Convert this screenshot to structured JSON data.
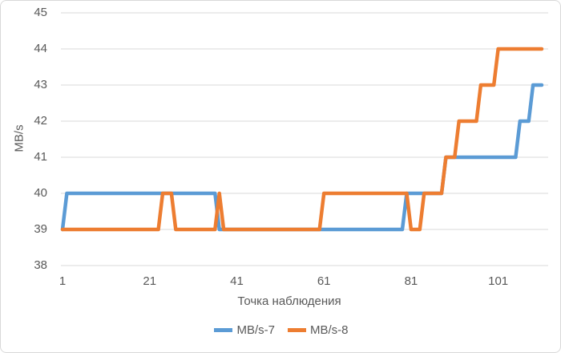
{
  "chart_data": {
    "type": "line",
    "title": "",
    "xlabel": "Точка наблюдения",
    "ylabel": "MB/s",
    "ylim": [
      38,
      45
    ],
    "yticks": [
      38,
      39,
      40,
      41,
      42,
      43,
      44,
      45
    ],
    "xticks": [
      1,
      21,
      41,
      61,
      81,
      101
    ],
    "x_start": 1,
    "n_points": 111,
    "grid": "horizontal",
    "legend_position": "bottom",
    "colors": {
      "grid": "#d9d9d9",
      "border": "#d9d9d9",
      "text": "#595959",
      "background": "#ffffff"
    },
    "series": [
      {
        "name": "MB/s-7",
        "color": "#5B9BD5",
        "values": [
          39,
          40,
          40,
          40,
          40,
          40,
          40,
          40,
          40,
          40,
          40,
          40,
          40,
          40,
          40,
          40,
          40,
          40,
          40,
          40,
          40,
          40,
          40,
          40,
          40,
          40,
          40,
          40,
          40,
          40,
          40,
          40,
          40,
          40,
          40,
          40,
          39,
          39,
          39,
          39,
          39,
          39,
          39,
          39,
          39,
          39,
          39,
          39,
          39,
          39,
          39,
          39,
          39,
          39,
          39,
          39,
          39,
          39,
          39,
          39,
          39,
          39,
          39,
          39,
          39,
          39,
          39,
          39,
          39,
          39,
          39,
          39,
          39,
          39,
          39,
          39,
          39,
          39,
          39,
          40,
          40,
          40,
          40,
          40,
          40,
          40,
          40,
          40,
          41,
          41,
          41,
          41,
          41,
          41,
          41,
          41,
          41,
          41,
          41,
          41,
          41,
          41,
          41,
          41,
          41,
          42,
          42,
          42,
          43,
          43,
          43
        ]
      },
      {
        "name": "MB/s-8",
        "color": "#ED7D31",
        "values": [
          39,
          39,
          39,
          39,
          39,
          39,
          39,
          39,
          39,
          39,
          39,
          39,
          39,
          39,
          39,
          39,
          39,
          39,
          39,
          39,
          39,
          39,
          39,
          40,
          40,
          40,
          39,
          39,
          39,
          39,
          39,
          39,
          39,
          39,
          39,
          39,
          40,
          39,
          39,
          39,
          39,
          39,
          39,
          39,
          39,
          39,
          39,
          39,
          39,
          39,
          39,
          39,
          39,
          39,
          39,
          39,
          39,
          39,
          39,
          39,
          40,
          40,
          40,
          40,
          40,
          40,
          40,
          40,
          40,
          40,
          40,
          40,
          40,
          40,
          40,
          40,
          40,
          40,
          40,
          40,
          39,
          39,
          39,
          40,
          40,
          40,
          40,
          40,
          41,
          41,
          41,
          42,
          42,
          42,
          42,
          42,
          43,
          43,
          43,
          43,
          44,
          44,
          44,
          44,
          44,
          44,
          44,
          44,
          44,
          44,
          44
        ]
      }
    ]
  }
}
